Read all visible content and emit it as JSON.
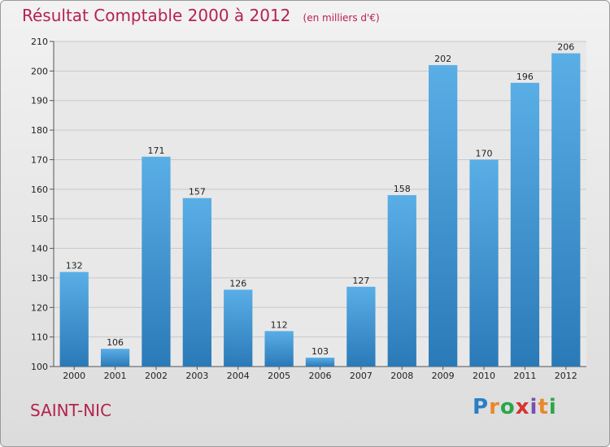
{
  "title": "Résultat Comptable 2000 à 2012",
  "unit": "(en milliers d'€)",
  "commune": "SAINT-NIC",
  "logo": {
    "letters": [
      "P",
      "r",
      "o",
      "x",
      "i",
      "t",
      "i"
    ],
    "colors": [
      "#2a7fc4",
      "#e8892a",
      "#2aa64a",
      "#d63232",
      "#7a4fb5",
      "#e8892a",
      "#2aa64a"
    ]
  },
  "colors": {
    "bar_top": "#5aaee6",
    "bar_bottom": "#2a7ab8",
    "title": "#b5224f"
  },
  "chart_data": {
    "type": "bar",
    "categories": [
      "2000",
      "2001",
      "2002",
      "2003",
      "2004",
      "2005",
      "2006",
      "2007",
      "2008",
      "2009",
      "2010",
      "2011",
      "2012"
    ],
    "values": [
      132,
      106,
      171,
      157,
      126,
      112,
      103,
      127,
      158,
      202,
      170,
      196,
      206
    ],
    "ylim": [
      100,
      210
    ],
    "yticks": [
      100,
      110,
      120,
      130,
      140,
      150,
      160,
      170,
      180,
      190,
      200,
      210
    ],
    "grid": true
  }
}
